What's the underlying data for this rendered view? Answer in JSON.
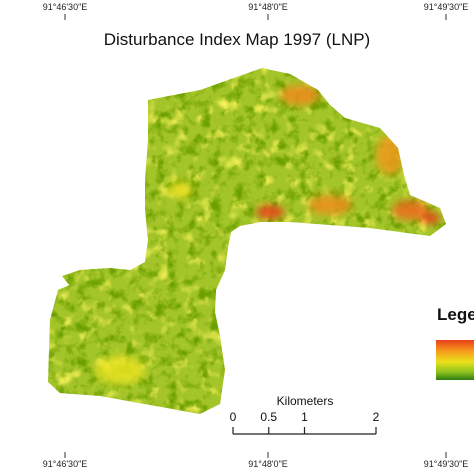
{
  "map": {
    "title": "Disturbance Index Map 1997 (LNP)",
    "top_labels": [
      "91°46'30\"E",
      "91°48'0\"E",
      "91°49'30\"E"
    ],
    "bottom_labels": [
      "91°46'30\"E",
      "91°48'0\"E",
      "91°49'30\"E"
    ],
    "legend": {
      "title": "Legend"
    },
    "scale_bar": {
      "title": "Kilometers",
      "ticks": [
        0,
        0.5,
        1,
        2
      ]
    }
  }
}
